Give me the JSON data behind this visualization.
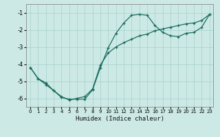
{
  "title": "",
  "xlabel": "Humidex (Indice chaleur)",
  "ylabel": "",
  "background_color": "#cce9e5",
  "grid_color": "#aad4cf",
  "line_color": "#1a6b5e",
  "xlim": [
    -0.5,
    23.5
  ],
  "ylim": [
    -6.5,
    -0.5
  ],
  "xticks": [
    0,
    1,
    2,
    3,
    4,
    5,
    6,
    7,
    8,
    9,
    10,
    11,
    12,
    13,
    14,
    15,
    16,
    17,
    18,
    19,
    20,
    21,
    22,
    23
  ],
  "yticks": [
    -6,
    -5,
    -4,
    -3,
    -2,
    -1
  ],
  "line1_x": [
    0,
    1,
    2,
    3,
    4,
    5,
    6,
    7,
    8,
    9,
    10,
    11,
    12,
    13,
    14,
    15,
    16,
    17,
    18,
    19,
    20,
    21,
    22,
    23
  ],
  "line1_y": [
    -4.2,
    -4.85,
    -5.2,
    -5.55,
    -5.95,
    -6.05,
    -6.05,
    -6.05,
    -5.5,
    -4.2,
    -3.05,
    -2.2,
    -1.6,
    -1.15,
    -1.1,
    -1.15,
    -1.75,
    -2.15,
    -2.35,
    -2.4,
    -2.2,
    -2.15,
    -1.85,
    -1.1
  ],
  "line2_x": [
    0,
    1,
    2,
    3,
    4,
    5,
    6,
    7,
    8,
    9,
    10,
    11,
    12,
    13,
    14,
    15,
    16,
    17,
    18,
    19,
    20,
    21,
    22,
    23
  ],
  "line2_y": [
    -4.2,
    -4.85,
    -5.1,
    -5.55,
    -5.9,
    -6.1,
    -6.0,
    -5.9,
    -5.45,
    -4.05,
    -3.35,
    -3.0,
    -2.75,
    -2.55,
    -2.35,
    -2.25,
    -2.05,
    -1.95,
    -1.85,
    -1.75,
    -1.65,
    -1.6,
    -1.45,
    -1.1
  ]
}
